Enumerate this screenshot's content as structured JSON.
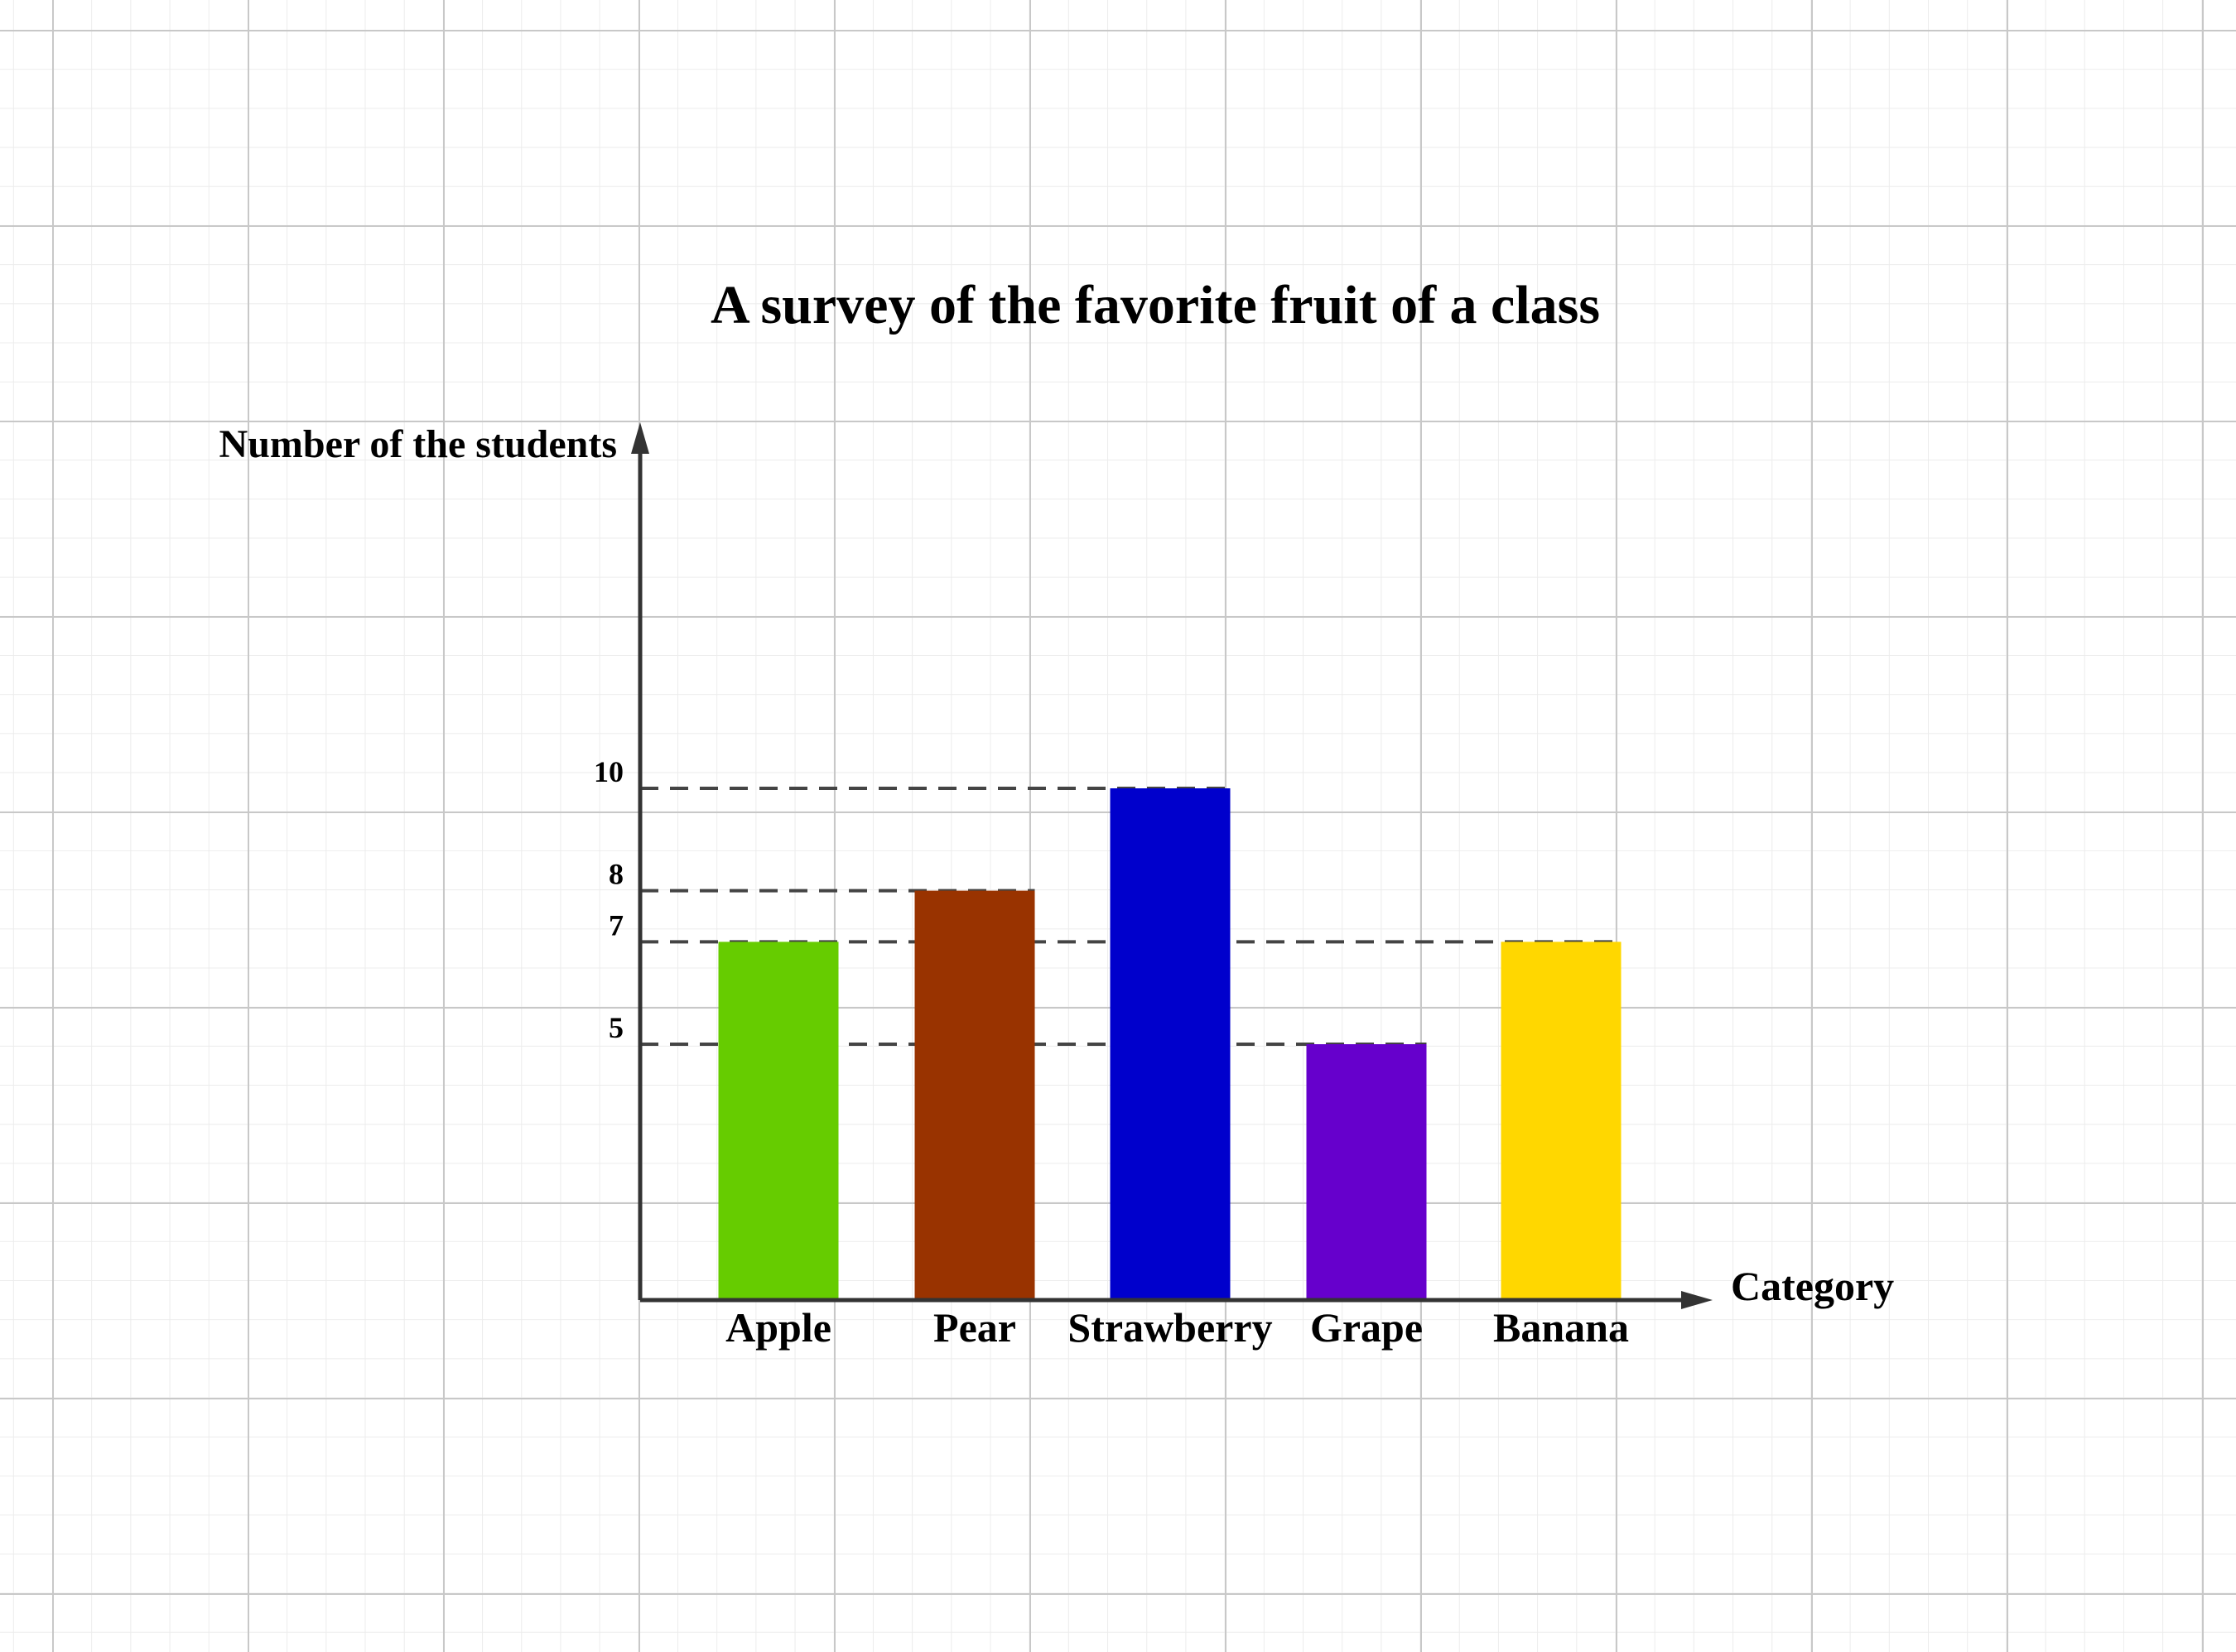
{
  "chart_data": {
    "type": "bar",
    "title": "A survey of the favorite fruit of a class",
    "ylabel": "Number of the students",
    "xlabel": "Category",
    "categories": [
      "Apple",
      "Pear",
      "Strawberry",
      "Grape",
      "Banana"
    ],
    "values": [
      7,
      8,
      10,
      5,
      7
    ],
    "colors": [
      "#66cc00",
      "#993300",
      "#0000cc",
      "#6600cc",
      "#ffd700"
    ],
    "yticks": [
      5,
      7,
      8,
      10
    ],
    "ylim": [
      0,
      21
    ],
    "grid": true,
    "legend": "none",
    "reference_lines": "dashed lines from y-axis to bar tops"
  }
}
